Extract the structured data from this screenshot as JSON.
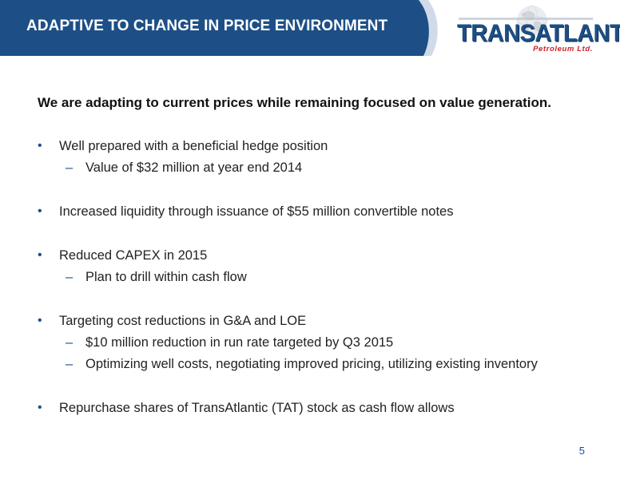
{
  "header": {
    "title": "ADAPTIVE TO CHANGE IN PRICE ENVIRONMENT",
    "bar_color": "#1d4f86"
  },
  "logo": {
    "name": "TRANSATLANTIC",
    "subtitle": "Petroleum Ltd."
  },
  "lead": "We are adapting to current prices while remaining focused on value generation.",
  "bullets": [
    {
      "text": "Well prepared with a beneficial hedge position",
      "subs": [
        "Value of $32 million at year end 2014"
      ]
    },
    {
      "text": "Increased liquidity through issuance of $55 million convertible notes",
      "subs": []
    },
    {
      "text": "Reduced CAPEX in 2015",
      "subs": [
        "Plan to drill within cash flow"
      ]
    },
    {
      "text": "Targeting cost reductions in G&A and LOE",
      "subs": [
        "$10 million reduction in run rate targeted by Q3 2015",
        "Optimizing well costs, negotiating improved pricing, utilizing existing inventory"
      ]
    },
    {
      "text": "Repurchase shares of TransAtlantic (TAT) stock as cash flow allows",
      "subs": []
    }
  ],
  "bullet_glyph": "•",
  "sub_glyph": "–",
  "page_number": "5"
}
